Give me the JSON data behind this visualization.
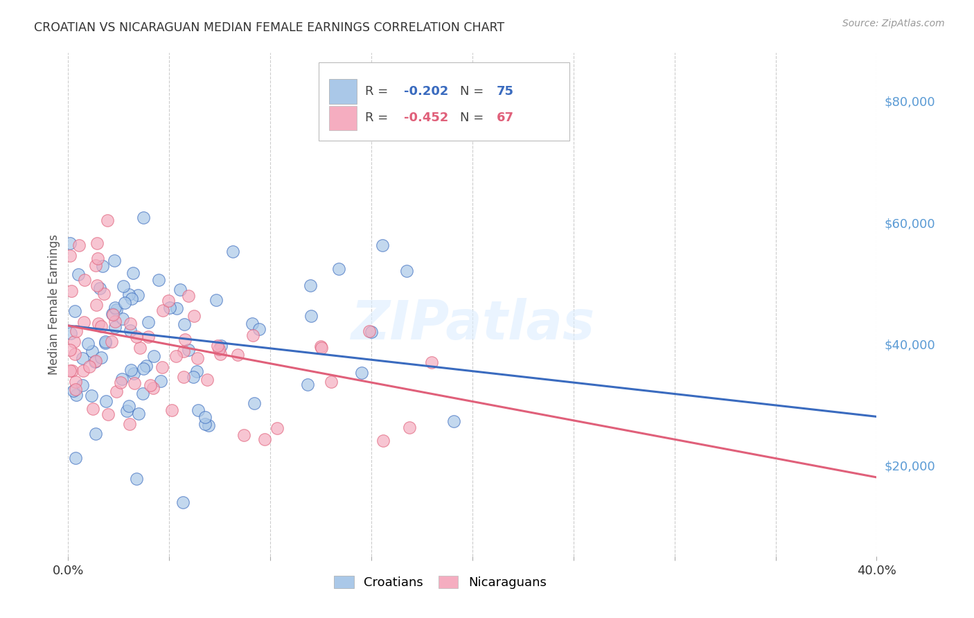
{
  "title": "CROATIAN VS NICARAGUAN MEDIAN FEMALE EARNINGS CORRELATION CHART",
  "source": "Source: ZipAtlas.com",
  "ylabel": "Median Female Earnings",
  "right_ytick_labels": [
    "$20,000",
    "$40,000",
    "$60,000",
    "$80,000"
  ],
  "right_ytick_values": [
    20000,
    40000,
    60000,
    80000
  ],
  "xlim": [
    0.0,
    0.4
  ],
  "ylim": [
    5000,
    88000
  ],
  "croatian_R": -0.202,
  "croatian_N": 75,
  "nicaraguan_R": -0.452,
  "nicaraguan_N": 67,
  "croatian_color": "#aac8e8",
  "nicaraguan_color": "#f5adc0",
  "croatian_line_color": "#3a6bbf",
  "nicaraguan_line_color": "#e0607a",
  "watermark": "ZIPatlas",
  "legend_croatian": "Croatians",
  "legend_nicaraguan": "Nicaraguans",
  "background_color": "#ffffff",
  "grid_color": "#cccccc",
  "title_color": "#333333",
  "source_color": "#999999",
  "right_label_color": "#5b9bd5",
  "croatian_line_x0": 0.0,
  "croatian_line_y0": 43000,
  "croatian_line_x1": 0.4,
  "croatian_line_y1": 28000,
  "nicaraguan_line_x0": 0.0,
  "nicaraguan_line_y0": 43000,
  "nicaraguan_line_x1": 0.4,
  "nicaraguan_line_y1": 18000
}
